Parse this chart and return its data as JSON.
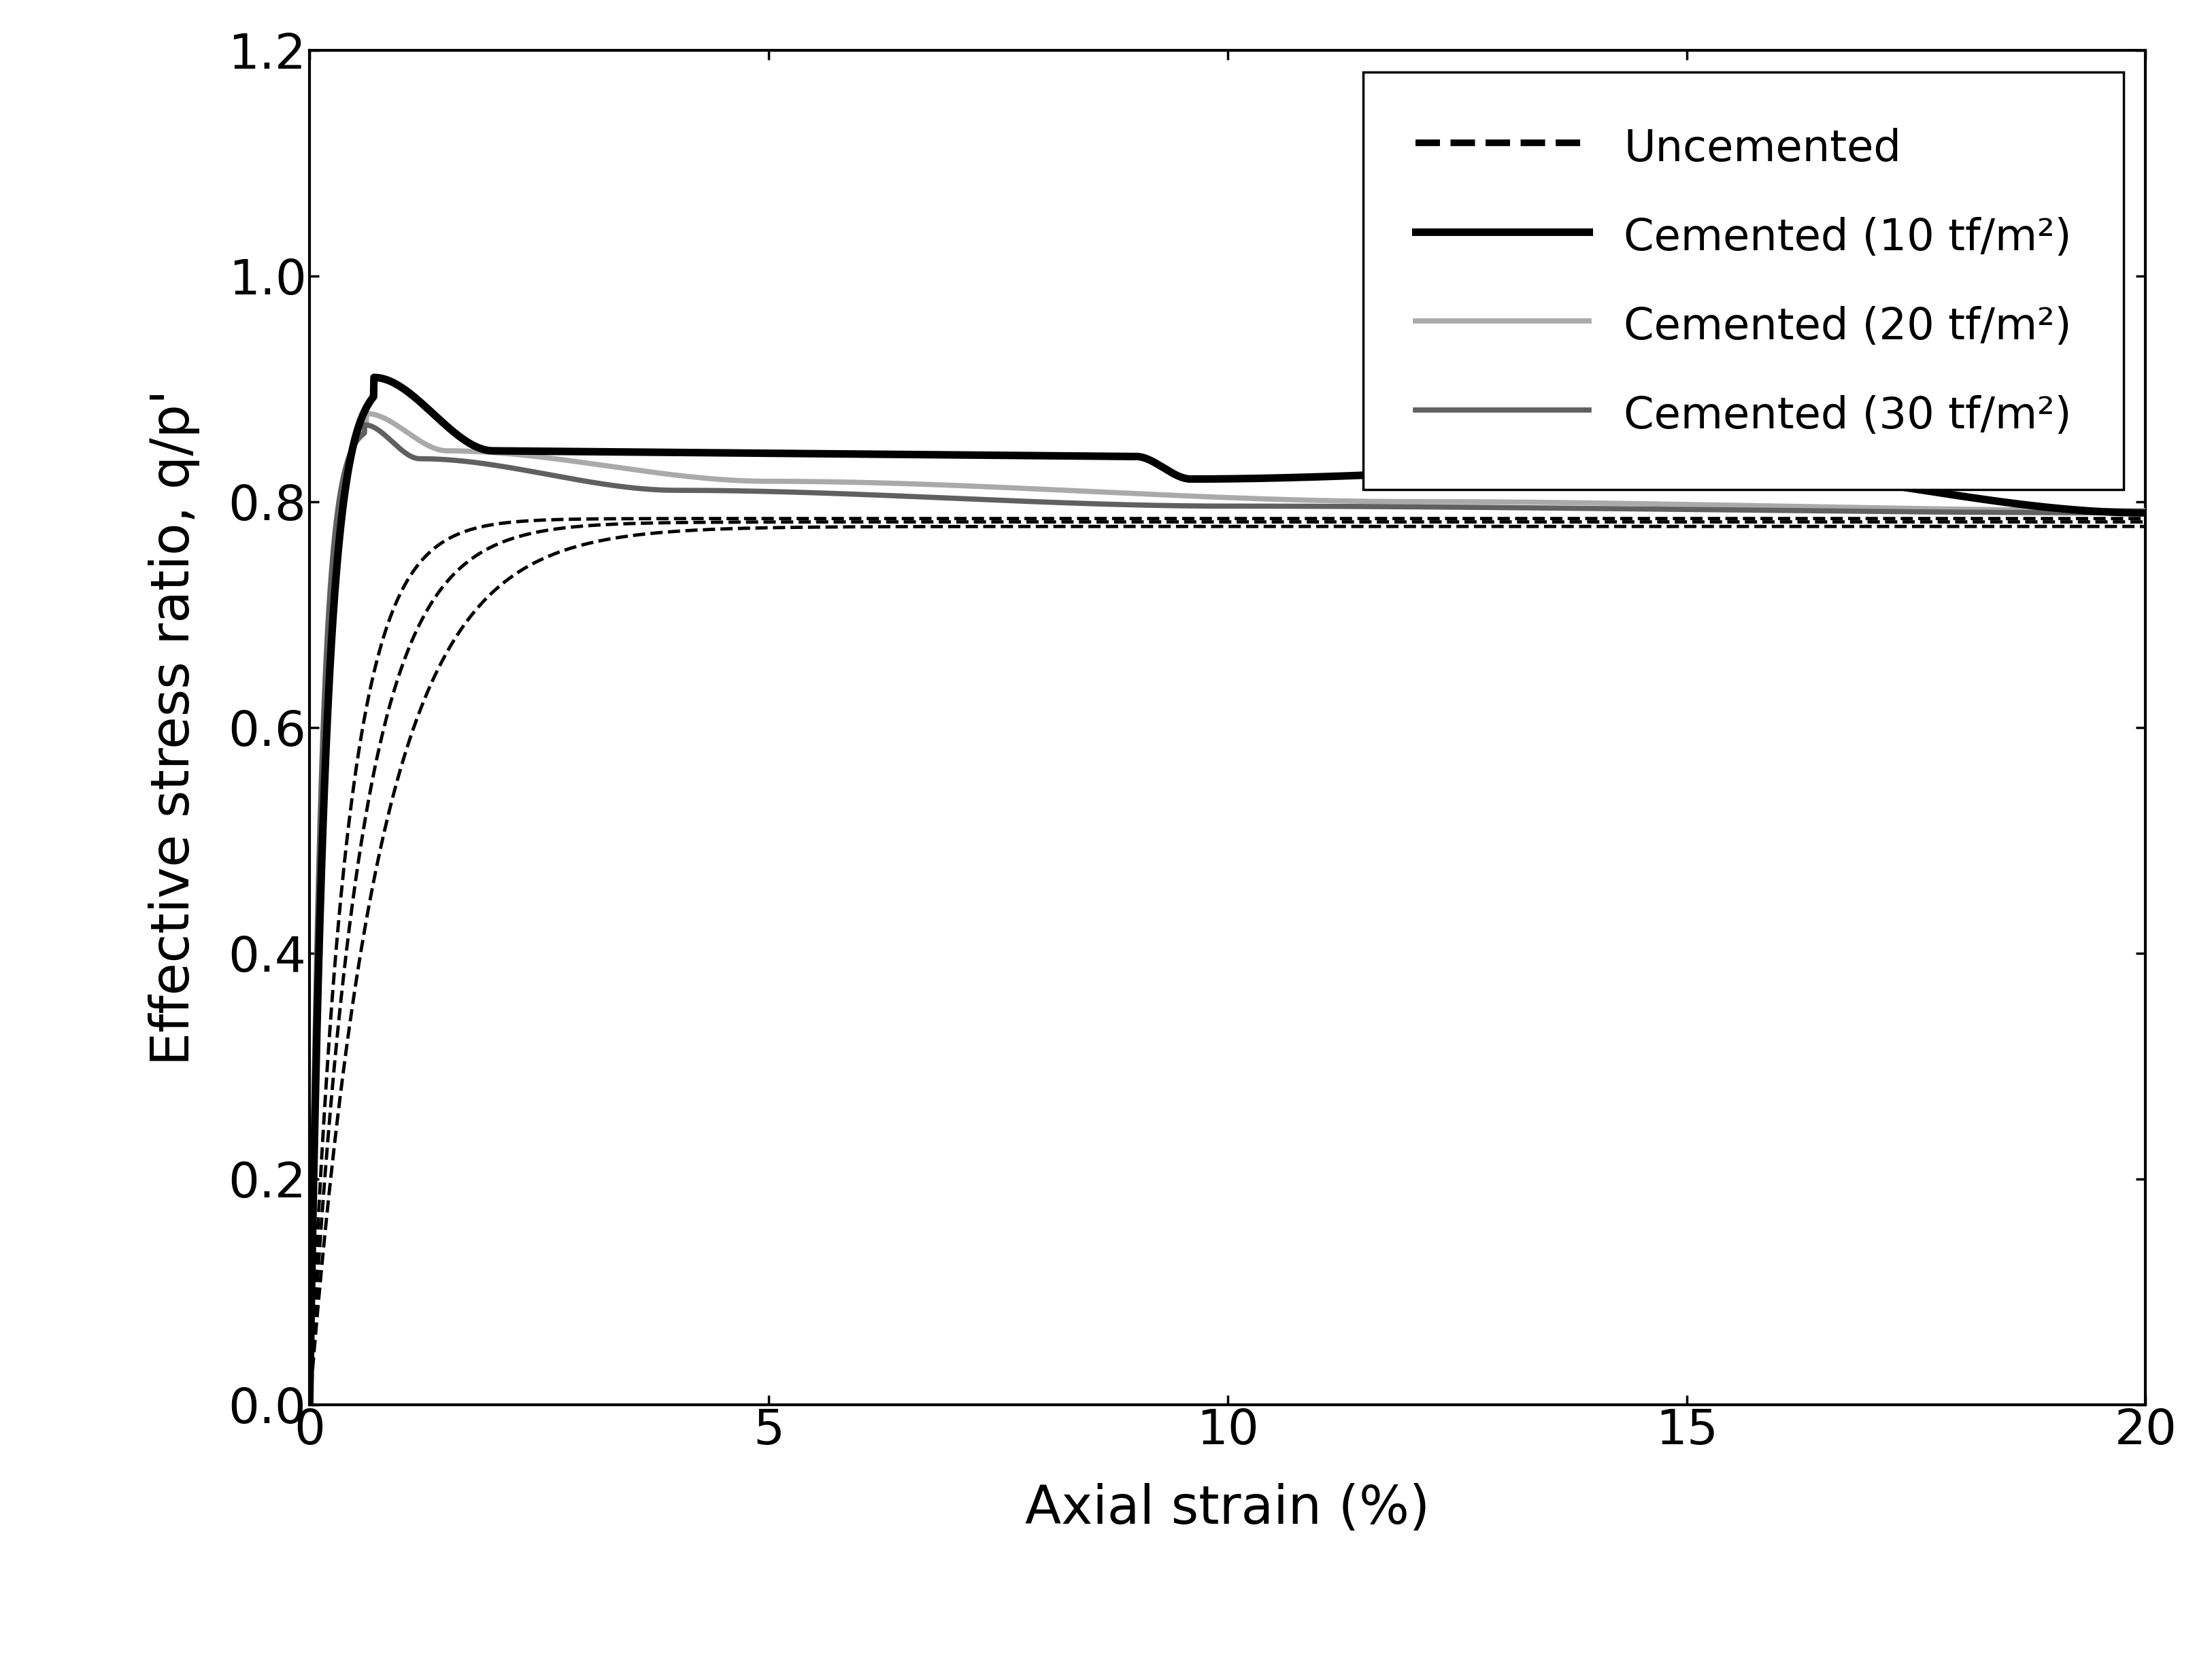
{
  "xlabel": "Axial strain (%)",
  "ylabel": "Effective stress ratio, q/p'",
  "xlim": [
    0,
    20
  ],
  "ylim": [
    0.0,
    1.2
  ],
  "xticks": [
    0,
    5,
    10,
    15,
    20
  ],
  "yticks": [
    0.0,
    0.2,
    0.4,
    0.6,
    0.8,
    1.0,
    1.2
  ],
  "legend_labels": [
    "Uncemented",
    "Cemented (10 tf/m²)",
    "Cemented (20 tf/m²)",
    "Cemented (30 tf/m²)"
  ],
  "background_color": "#ffffff",
  "xlabel_fontsize": 56,
  "ylabel_fontsize": 56,
  "tick_fontsize": 52,
  "legend_fontsize": 46,
  "lw_uncemented": 3.5,
  "lw_cemented10": 8.0,
  "lw_cemented20": 5.5,
  "lw_cemented30": 5.5,
  "color_black": "#000000",
  "color_gray20": "#aaaaaa",
  "color_gray30": "#606060"
}
